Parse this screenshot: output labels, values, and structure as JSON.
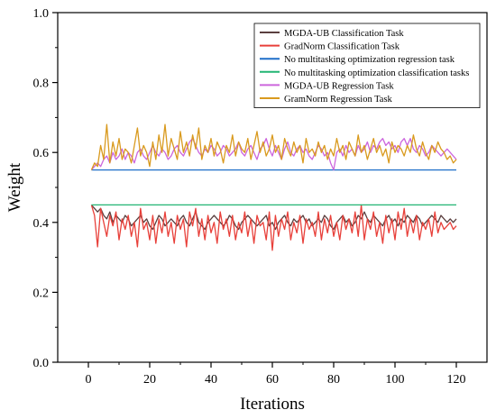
{
  "chart_data": {
    "type": "line",
    "title": "",
    "xlabel": "Iterations",
    "ylabel": "Weight",
    "xlim": [
      -10,
      130
    ],
    "ylim": [
      0.0,
      1.0
    ],
    "xticks": [
      0,
      20,
      40,
      60,
      80,
      100,
      120
    ],
    "yticks": [
      0.0,
      0.2,
      0.4,
      0.6,
      0.8,
      1.0
    ],
    "xtick_labels": [
      "0",
      "20",
      "40",
      "60",
      "80",
      "100",
      "120"
    ],
    "ytick_labels": [
      "0.0",
      "0.2",
      "0.4",
      "0.6",
      "0.8",
      "1.0"
    ],
    "grid": false,
    "legend_position": "top-right",
    "x_start": 1,
    "series": [
      {
        "name": "MGDA-UB Classification Task",
        "color": "#5a3f3f",
        "values": [
          0.45,
          0.44,
          0.43,
          0.44,
          0.42,
          0.41,
          0.43,
          0.4,
          0.42,
          0.41,
          0.4,
          0.42,
          0.41,
          0.39,
          0.4,
          0.41,
          0.42,
          0.4,
          0.41,
          0.39,
          0.38,
          0.4,
          0.42,
          0.41,
          0.39,
          0.4,
          0.41,
          0.4,
          0.39,
          0.41,
          0.42,
          0.4,
          0.39,
          0.41,
          0.43,
          0.4,
          0.39,
          0.38,
          0.4,
          0.41,
          0.42,
          0.41,
          0.4,
          0.39,
          0.4,
          0.42,
          0.41,
          0.39,
          0.38,
          0.4,
          0.41,
          0.42,
          0.41,
          0.4,
          0.39,
          0.4,
          0.41,
          0.42,
          0.39,
          0.4,
          0.38,
          0.4,
          0.41,
          0.42,
          0.4,
          0.39,
          0.41,
          0.4,
          0.41,
          0.42,
          0.4,
          0.41,
          0.39,
          0.4,
          0.41,
          0.4,
          0.42,
          0.41,
          0.39,
          0.38,
          0.4,
          0.41,
          0.42,
          0.4,
          0.41,
          0.39,
          0.4,
          0.42,
          0.41,
          0.43,
          0.41,
          0.4,
          0.42,
          0.41,
          0.4,
          0.39,
          0.41,
          0.42,
          0.4,
          0.41,
          0.39,
          0.41,
          0.4,
          0.42,
          0.41,
          0.4,
          0.42,
          0.41,
          0.39,
          0.4,
          0.41,
          0.42,
          0.41,
          0.4,
          0.42,
          0.41,
          0.4,
          0.41,
          0.4,
          0.41
        ]
      },
      {
        "name": "GradNorm Classification Task",
        "color": "#e8403a",
        "values": [
          0.45,
          0.42,
          0.33,
          0.44,
          0.4,
          0.36,
          0.42,
          0.39,
          0.43,
          0.35,
          0.41,
          0.38,
          0.42,
          0.36,
          0.4,
          0.33,
          0.44,
          0.38,
          0.4,
          0.35,
          0.42,
          0.34,
          0.41,
          0.37,
          0.43,
          0.36,
          0.4,
          0.34,
          0.42,
          0.38,
          0.41,
          0.33,
          0.43,
          0.39,
          0.44,
          0.36,
          0.41,
          0.35,
          0.42,
          0.37,
          0.4,
          0.34,
          0.43,
          0.38,
          0.41,
          0.36,
          0.42,
          0.35,
          0.4,
          0.37,
          0.43,
          0.36,
          0.41,
          0.34,
          0.42,
          0.39,
          0.4,
          0.35,
          0.43,
          0.32,
          0.42,
          0.36,
          0.41,
          0.38,
          0.43,
          0.35,
          0.4,
          0.37,
          0.42,
          0.34,
          0.41,
          0.38,
          0.4,
          0.36,
          0.43,
          0.35,
          0.41,
          0.37,
          0.42,
          0.36,
          0.4,
          0.35,
          0.42,
          0.38,
          0.41,
          0.37,
          0.43,
          0.36,
          0.45,
          0.35,
          0.41,
          0.38,
          0.43,
          0.36,
          0.4,
          0.34,
          0.42,
          0.37,
          0.41,
          0.35,
          0.43,
          0.38,
          0.44,
          0.36,
          0.41,
          0.37,
          0.42,
          0.35,
          0.4,
          0.38,
          0.41,
          0.36,
          0.43,
          0.37,
          0.4,
          0.38,
          0.39,
          0.4,
          0.38,
          0.39
        ]
      },
      {
        "name": "No multitasking optimization regression task",
        "color": "#1f6fc9",
        "values": [
          0.55,
          0.55,
          0.55,
          0.55,
          0.55,
          0.55,
          0.55,
          0.55,
          0.55,
          0.55,
          0.55,
          0.55,
          0.55,
          0.55,
          0.55,
          0.55,
          0.55,
          0.55,
          0.55,
          0.55,
          0.55,
          0.55,
          0.55,
          0.55,
          0.55,
          0.55,
          0.55,
          0.55,
          0.55,
          0.55,
          0.55,
          0.55,
          0.55,
          0.55,
          0.55,
          0.55,
          0.55,
          0.55,
          0.55,
          0.55,
          0.55,
          0.55,
          0.55,
          0.55,
          0.55,
          0.55,
          0.55,
          0.55,
          0.55,
          0.55,
          0.55,
          0.55,
          0.55,
          0.55,
          0.55,
          0.55,
          0.55,
          0.55,
          0.55,
          0.55,
          0.55,
          0.55,
          0.55,
          0.55,
          0.55,
          0.55,
          0.55,
          0.55,
          0.55,
          0.55,
          0.55,
          0.55,
          0.55,
          0.55,
          0.55,
          0.55,
          0.55,
          0.55,
          0.55,
          0.55,
          0.55,
          0.55,
          0.55,
          0.55,
          0.55,
          0.55,
          0.55,
          0.55,
          0.55,
          0.55,
          0.55,
          0.55,
          0.55,
          0.55,
          0.55,
          0.55,
          0.55,
          0.55,
          0.55,
          0.55,
          0.55,
          0.55,
          0.55,
          0.55,
          0.55,
          0.55,
          0.55,
          0.55,
          0.55,
          0.55,
          0.55,
          0.55,
          0.55,
          0.55,
          0.55,
          0.55,
          0.55,
          0.55,
          0.55,
          0.55
        ]
      },
      {
        "name": "No multitasking optimization classification tasks",
        "color": "#22b573",
        "values": [
          0.45,
          0.45,
          0.45,
          0.45,
          0.45,
          0.45,
          0.45,
          0.45,
          0.45,
          0.45,
          0.45,
          0.45,
          0.45,
          0.45,
          0.45,
          0.45,
          0.45,
          0.45,
          0.45,
          0.45,
          0.45,
          0.45,
          0.45,
          0.45,
          0.45,
          0.45,
          0.45,
          0.45,
          0.45,
          0.45,
          0.45,
          0.45,
          0.45,
          0.45,
          0.45,
          0.45,
          0.45,
          0.45,
          0.45,
          0.45,
          0.45,
          0.45,
          0.45,
          0.45,
          0.45,
          0.45,
          0.45,
          0.45,
          0.45,
          0.45,
          0.45,
          0.45,
          0.45,
          0.45,
          0.45,
          0.45,
          0.45,
          0.45,
          0.45,
          0.45,
          0.45,
          0.45,
          0.45,
          0.45,
          0.45,
          0.45,
          0.45,
          0.45,
          0.45,
          0.45,
          0.45,
          0.45,
          0.45,
          0.45,
          0.45,
          0.45,
          0.45,
          0.45,
          0.45,
          0.45,
          0.45,
          0.45,
          0.45,
          0.45,
          0.45,
          0.45,
          0.45,
          0.45,
          0.45,
          0.45,
          0.45,
          0.45,
          0.45,
          0.45,
          0.45,
          0.45,
          0.45,
          0.45,
          0.45,
          0.45,
          0.45,
          0.45,
          0.45,
          0.45,
          0.45,
          0.45,
          0.45,
          0.45,
          0.45,
          0.45,
          0.45,
          0.45,
          0.45,
          0.45,
          0.45,
          0.45,
          0.45,
          0.45,
          0.45,
          0.45
        ]
      },
      {
        "name": "MGDA-UB Regression Task",
        "color": "#cc66dd",
        "values": [
          0.55,
          0.56,
          0.57,
          0.56,
          0.58,
          0.59,
          0.57,
          0.6,
          0.58,
          0.59,
          0.61,
          0.58,
          0.6,
          0.59,
          0.57,
          0.6,
          0.61,
          0.59,
          0.58,
          0.6,
          0.62,
          0.6,
          0.59,
          0.61,
          0.6,
          0.58,
          0.59,
          0.61,
          0.62,
          0.6,
          0.59,
          0.61,
          0.63,
          0.64,
          0.62,
          0.6,
          0.59,
          0.61,
          0.6,
          0.62,
          0.61,
          0.59,
          0.6,
          0.62,
          0.61,
          0.59,
          0.6,
          0.61,
          0.63,
          0.6,
          0.59,
          0.61,
          0.62,
          0.6,
          0.58,
          0.61,
          0.62,
          0.64,
          0.61,
          0.59,
          0.62,
          0.6,
          0.58,
          0.61,
          0.63,
          0.6,
          0.59,
          0.61,
          0.62,
          0.6,
          0.61,
          0.59,
          0.58,
          0.6,
          0.62,
          0.61,
          0.59,
          0.6,
          0.57,
          0.55,
          0.6,
          0.61,
          0.59,
          0.62,
          0.6,
          0.61,
          0.59,
          0.62,
          0.6,
          0.61,
          0.63,
          0.6,
          0.62,
          0.61,
          0.63,
          0.64,
          0.62,
          0.63,
          0.61,
          0.62,
          0.6,
          0.63,
          0.64,
          0.62,
          0.64,
          0.61,
          0.6,
          0.62,
          0.61,
          0.59,
          0.6,
          0.62,
          0.61,
          0.6,
          0.59,
          0.6,
          0.61,
          0.6,
          0.59,
          0.58
        ]
      },
      {
        "name": "GramNorm Regression Task",
        "color": "#d99a1e",
        "values": [
          0.55,
          0.57,
          0.56,
          0.62,
          0.58,
          0.68,
          0.57,
          0.63,
          0.59,
          0.64,
          0.58,
          0.61,
          0.6,
          0.57,
          0.62,
          0.67,
          0.59,
          0.62,
          0.6,
          0.56,
          0.63,
          0.58,
          0.65,
          0.6,
          0.68,
          0.59,
          0.64,
          0.61,
          0.58,
          0.66,
          0.6,
          0.63,
          0.59,
          0.65,
          0.61,
          0.67,
          0.58,
          0.62,
          0.6,
          0.64,
          0.59,
          0.63,
          0.61,
          0.57,
          0.62,
          0.6,
          0.65,
          0.59,
          0.63,
          0.61,
          0.6,
          0.64,
          0.58,
          0.62,
          0.66,
          0.6,
          0.63,
          0.59,
          0.61,
          0.65,
          0.6,
          0.62,
          0.58,
          0.64,
          0.61,
          0.59,
          0.63,
          0.6,
          0.62,
          0.57,
          0.64,
          0.6,
          0.61,
          0.59,
          0.63,
          0.6,
          0.62,
          0.58,
          0.61,
          0.59,
          0.64,
          0.6,
          0.62,
          0.58,
          0.63,
          0.61,
          0.59,
          0.65,
          0.6,
          0.62,
          0.58,
          0.61,
          0.64,
          0.6,
          0.62,
          0.59,
          0.61,
          0.57,
          0.63,
          0.6,
          0.62,
          0.61,
          0.59,
          0.62,
          0.6,
          0.65,
          0.61,
          0.59,
          0.63,
          0.6,
          0.58,
          0.62,
          0.6,
          0.63,
          0.61,
          0.6,
          0.58,
          0.59,
          0.57,
          0.58
        ]
      }
    ]
  }
}
